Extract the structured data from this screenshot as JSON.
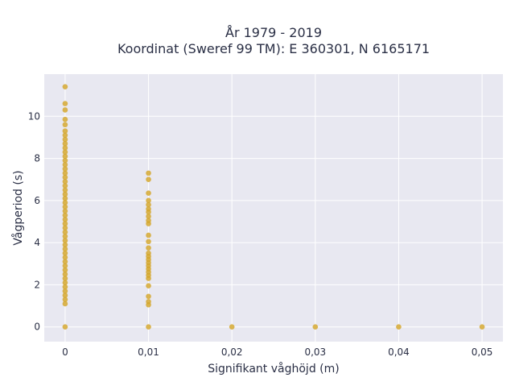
{
  "chart_data": {
    "type": "scatter",
    "title": "År 1979 - 2019",
    "subtitle": "Koordinat (Sweref 99 TM): E 360301, N 6165171",
    "xlabel": "Signifikant våghöjd (m)",
    "ylabel": "Vågperiod (s)",
    "xlim": [
      -0.0025,
      0.0525
    ],
    "ylim": [
      -0.7,
      12.0
    ],
    "xticks": [
      0,
      0.01,
      0.02,
      0.03,
      0.04,
      0.05
    ],
    "xtick_labels": [
      "0",
      "0,01",
      "0,02",
      "0,03",
      "0,04",
      "0,05"
    ],
    "yticks": [
      0,
      2,
      4,
      6,
      8,
      10
    ],
    "ytick_labels": [
      "0",
      "2",
      "4",
      "6",
      "8",
      "10"
    ],
    "grid": true,
    "legend": "none",
    "colors": {
      "marker": "#d4a62a",
      "plot_bg": "#e8e8f1",
      "grid": "#ffffff"
    },
    "series": [
      {
        "points": [
          {
            "x": 0,
            "y": 0.0
          },
          {
            "x": 0,
            "y": 1.1
          },
          {
            "x": 0,
            "y": 1.3
          },
          {
            "x": 0,
            "y": 1.5
          },
          {
            "x": 0,
            "y": 1.7
          },
          {
            "x": 0,
            "y": 1.9
          },
          {
            "x": 0,
            "y": 2.1
          },
          {
            "x": 0,
            "y": 2.3
          },
          {
            "x": 0,
            "y": 2.5
          },
          {
            "x": 0,
            "y": 2.7
          },
          {
            "x": 0,
            "y": 2.9
          },
          {
            "x": 0,
            "y": 3.1
          },
          {
            "x": 0,
            "y": 3.3
          },
          {
            "x": 0,
            "y": 3.5
          },
          {
            "x": 0,
            "y": 3.7
          },
          {
            "x": 0,
            "y": 3.9
          },
          {
            "x": 0,
            "y": 4.1
          },
          {
            "x": 0,
            "y": 4.3
          },
          {
            "x": 0,
            "y": 4.5
          },
          {
            "x": 0,
            "y": 4.7
          },
          {
            "x": 0,
            "y": 4.9
          },
          {
            "x": 0,
            "y": 5.1
          },
          {
            "x": 0,
            "y": 5.3
          },
          {
            "x": 0,
            "y": 5.5
          },
          {
            "x": 0,
            "y": 5.7
          },
          {
            "x": 0,
            "y": 5.9
          },
          {
            "x": 0,
            "y": 6.1
          },
          {
            "x": 0,
            "y": 6.3
          },
          {
            "x": 0,
            "y": 6.5
          },
          {
            "x": 0,
            "y": 6.7
          },
          {
            "x": 0,
            "y": 6.9
          },
          {
            "x": 0,
            "y": 7.1
          },
          {
            "x": 0,
            "y": 7.3
          },
          {
            "x": 0,
            "y": 7.5
          },
          {
            "x": 0,
            "y": 7.7
          },
          {
            "x": 0,
            "y": 7.9
          },
          {
            "x": 0,
            "y": 8.1
          },
          {
            "x": 0,
            "y": 8.3
          },
          {
            "x": 0,
            "y": 8.5
          },
          {
            "x": 0,
            "y": 8.7
          },
          {
            "x": 0,
            "y": 8.9
          },
          {
            "x": 0,
            "y": 9.1
          },
          {
            "x": 0,
            "y": 9.3
          },
          {
            "x": 0,
            "y": 9.6
          },
          {
            "x": 0,
            "y": 9.85
          },
          {
            "x": 0,
            "y": 10.3
          },
          {
            "x": 0,
            "y": 10.6
          },
          {
            "x": 0,
            "y": 11.4
          },
          {
            "x": 0.01,
            "y": 0.0
          },
          {
            "x": 0.01,
            "y": 1.05
          },
          {
            "x": 0.01,
            "y": 1.2
          },
          {
            "x": 0.01,
            "y": 1.45
          },
          {
            "x": 0.01,
            "y": 1.95
          },
          {
            "x": 0.01,
            "y": 2.3
          },
          {
            "x": 0.01,
            "y": 2.45
          },
          {
            "x": 0.01,
            "y": 2.6
          },
          {
            "x": 0.01,
            "y": 2.75
          },
          {
            "x": 0.01,
            "y": 2.9
          },
          {
            "x": 0.01,
            "y": 3.05
          },
          {
            "x": 0.01,
            "y": 3.2
          },
          {
            "x": 0.01,
            "y": 3.35
          },
          {
            "x": 0.01,
            "y": 3.5
          },
          {
            "x": 0.01,
            "y": 3.75
          },
          {
            "x": 0.01,
            "y": 4.05
          },
          {
            "x": 0.01,
            "y": 4.35
          },
          {
            "x": 0.01,
            "y": 4.9
          },
          {
            "x": 0.01,
            "y": 5.05
          },
          {
            "x": 0.01,
            "y": 5.25
          },
          {
            "x": 0.01,
            "y": 5.45
          },
          {
            "x": 0.01,
            "y": 5.6
          },
          {
            "x": 0.01,
            "y": 5.8
          },
          {
            "x": 0.01,
            "y": 6.0
          },
          {
            "x": 0.01,
            "y": 6.35
          },
          {
            "x": 0.01,
            "y": 7.0
          },
          {
            "x": 0.01,
            "y": 7.3
          },
          {
            "x": 0.02,
            "y": 0.0
          },
          {
            "x": 0.03,
            "y": 0.0
          },
          {
            "x": 0.04,
            "y": 0.0
          },
          {
            "x": 0.05,
            "y": 0.0
          }
        ]
      }
    ]
  }
}
